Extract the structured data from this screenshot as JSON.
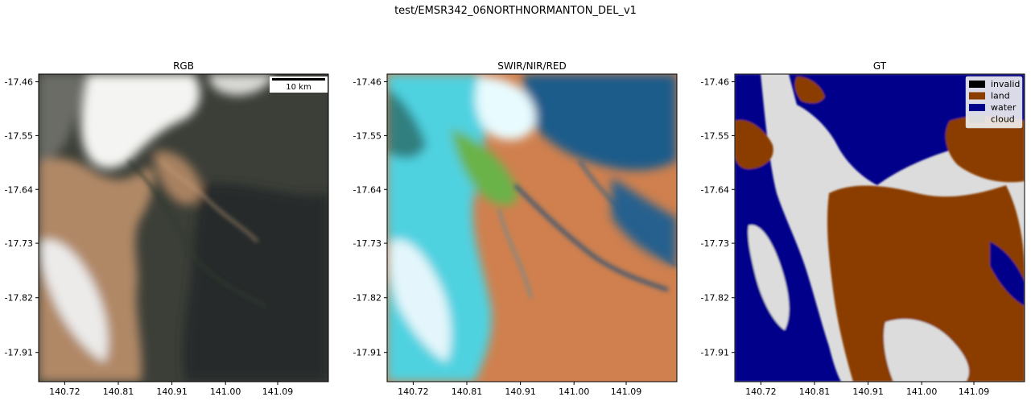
{
  "figure_title": "test/EMSR342_06NORTHNORMANTON_DEL_v1",
  "chart_data": [
    {
      "type": "image",
      "title": "RGB",
      "xticks": [
        "140.72",
        "140.81",
        "140.91",
        "141.00",
        "141.09"
      ],
      "yticks": [
        "-17.46",
        "-17.55",
        "-17.64",
        "-17.73",
        "-17.82",
        "-17.91"
      ],
      "scalebar_label": "10 km",
      "colors": {
        "dark_veg": "#3c3f38",
        "land": "#b08866",
        "cloud": "#f4f4f2",
        "shadow": "#1e221f"
      }
    },
    {
      "type": "image",
      "title": "SWIR/NIR/RED",
      "xticks": [
        "140.72",
        "140.81",
        "140.91",
        "141.00",
        "141.09"
      ],
      "yticks": [
        "-17.46",
        "-17.55",
        "-17.64",
        "-17.73",
        "-17.82",
        "-17.91"
      ],
      "colors": {
        "land": "#d0804e",
        "water": "#1f5b8a",
        "cyan": "#4fd2e0",
        "green": "#6bb34a",
        "cloud": "#e8fbff"
      }
    },
    {
      "type": "image",
      "title": "GT",
      "xticks": [
        "140.72",
        "140.81",
        "140.91",
        "141.00",
        "141.09"
      ],
      "yticks": [
        "-17.46",
        "-17.55",
        "-17.64",
        "-17.73",
        "-17.82",
        "-17.91"
      ],
      "legend_position": "top-right",
      "legend": [
        {
          "label": "invalid",
          "color": "#000000"
        },
        {
          "label": "land",
          "color": "#8b3c00"
        },
        {
          "label": "water",
          "color": "#00008b"
        },
        {
          "label": "cloud",
          "color": "#dcdcdc"
        }
      ]
    }
  ]
}
